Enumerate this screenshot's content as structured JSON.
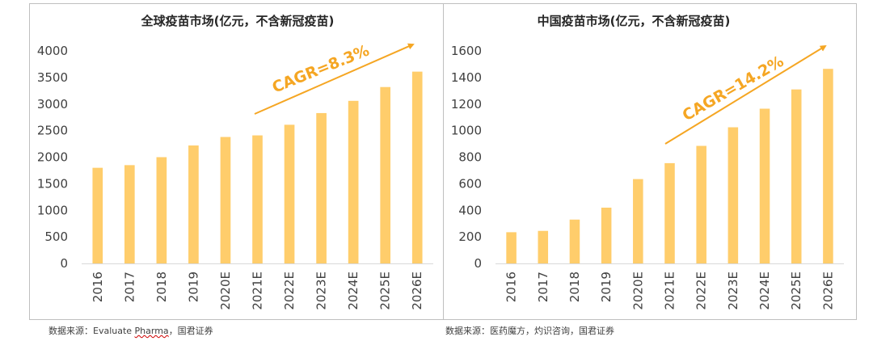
{
  "chart_data": [
    {
      "type": "bar",
      "title": "全球疫苗市场(亿元，不含新冠疫苗)",
      "categories": [
        "2016",
        "2017",
        "2018",
        "2019",
        "2020E",
        "2021E",
        "2022E",
        "2023E",
        "2024E",
        "2025E",
        "2026E"
      ],
      "values": [
        1800,
        1850,
        2000,
        2220,
        2380,
        2410,
        2610,
        2830,
        3060,
        3320,
        3610
      ],
      "ylim": [
        0,
        4000
      ],
      "yticks": [
        0,
        500,
        1000,
        1500,
        2000,
        2500,
        3000,
        3500,
        4000
      ],
      "annotation": "CAGR=8.3%",
      "bar_color": "#ffcd6b",
      "arrow_color": "#f5a623"
    },
    {
      "type": "bar",
      "title": "中国疫苗市场(亿元，不含新冠疫苗)",
      "categories": [
        "2016",
        "2017",
        "2018",
        "2019",
        "2020E",
        "2021E",
        "2022E",
        "2023E",
        "2024E",
        "2025E",
        "2026E"
      ],
      "values": [
        235,
        245,
        330,
        420,
        635,
        755,
        885,
        1025,
        1165,
        1310,
        1465
      ],
      "ylim": [
        0,
        1600
      ],
      "yticks": [
        0,
        200,
        400,
        600,
        800,
        1000,
        1200,
        1400,
        1600
      ],
      "annotation": "CAGR=14.2%",
      "bar_color": "#ffcd6b",
      "arrow_color": "#f5a623"
    }
  ],
  "sources": {
    "left_prefix": "数据来源：",
    "left_main": "Evaluate ",
    "left_underlined": "Pharma",
    "left_suffix": "，国君证券",
    "right": "数据来源：医药魔方，灼识咨询，国君证券"
  }
}
